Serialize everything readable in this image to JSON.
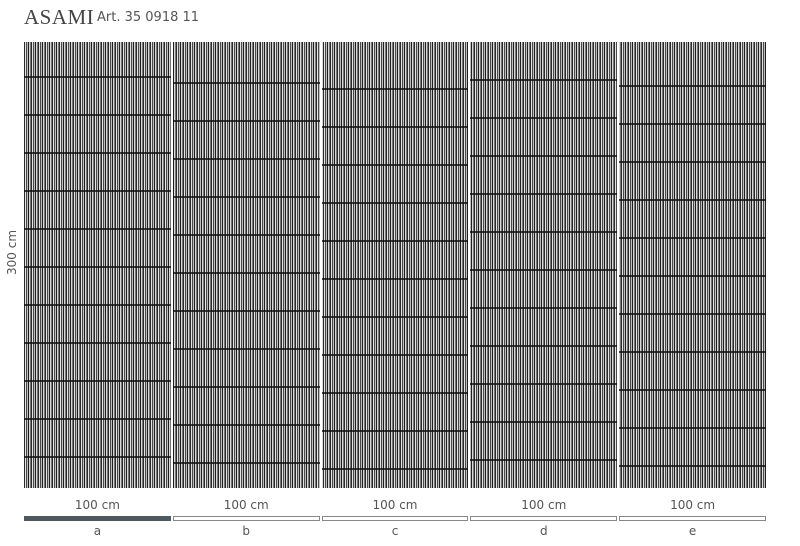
{
  "product": {
    "name": "ASAMI",
    "article": "Art. 35 0918 11"
  },
  "height_label": "300 cm",
  "panels": [
    {
      "width_label": "100 cm",
      "letter": "a",
      "selected": true
    },
    {
      "width_label": "100 cm",
      "letter": "b",
      "selected": false
    },
    {
      "width_label": "100 cm",
      "letter": "c",
      "selected": false
    },
    {
      "width_label": "100 cm",
      "letter": "d",
      "selected": false
    },
    {
      "width_label": "100 cm",
      "letter": "e",
      "selected": false
    }
  ],
  "colors": {
    "selected_bar": "#505860",
    "unselected_bar_border": "#888888"
  }
}
